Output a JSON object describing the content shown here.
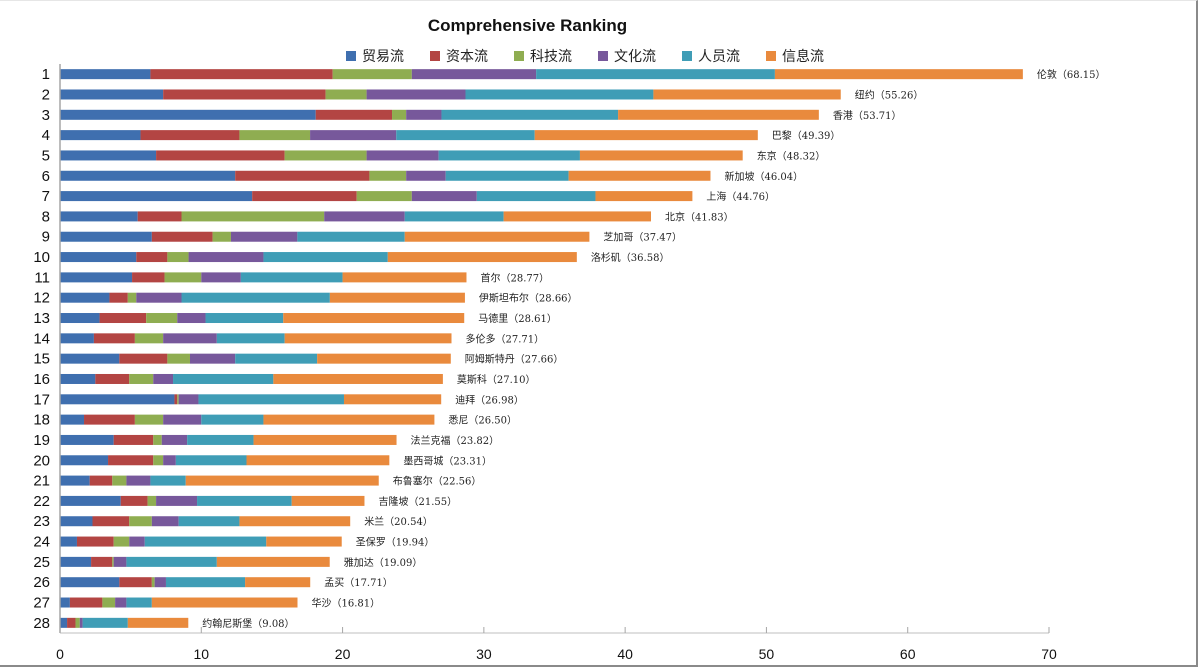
{
  "chart_data": {
    "type": "bar",
    "orientation": "horizontal",
    "stacked": true,
    "title": "Comprehensive Ranking",
    "xlabel": "",
    "ylabel": "",
    "xlim": [
      0,
      70
    ],
    "xticks": [
      0,
      10,
      20,
      30,
      40,
      50,
      60,
      70
    ],
    "grid": false,
    "legend_position": "top",
    "categories": [
      "1",
      "2",
      "3",
      "4",
      "5",
      "6",
      "7",
      "8",
      "9",
      "10",
      "11",
      "12",
      "13",
      "14",
      "15",
      "16",
      "17",
      "18",
      "19",
      "20",
      "21",
      "22",
      "23",
      "24",
      "25",
      "26",
      "27",
      "28"
    ],
    "bar_labels": [
      "伦敦（68.15）",
      "纽约（55.26）",
      "香港（53.71）",
      "巴黎（49.39）",
      "东京（48.32）",
      "新加坡（46.04）",
      "上海（44.76）",
      "北京（41.83）",
      "芝加哥（37.47）",
      "洛杉矶（36.58）",
      "首尔（28.77）",
      "伊斯坦布尔（28.66）",
      "马德里（28.61）",
      "多伦多（27.71）",
      "阿姆斯特丹（27.66）",
      "莫斯科（27.10）",
      "迪拜（26.98）",
      "悉尼（26.50）",
      "法兰克福（23.82）",
      "墨西哥城（23.31）",
      "布鲁塞尔（22.56）",
      "吉隆坡（21.55）",
      "米兰（20.54）",
      "圣保罗（19.94）",
      "雅加达（19.09）",
      "孟买（17.71）",
      "华沙（16.81）",
      "约翰尼斯堡（9.08）"
    ],
    "totals": [
      68.15,
      55.26,
      53.71,
      49.39,
      48.32,
      46.04,
      44.76,
      41.83,
      37.47,
      36.58,
      28.77,
      28.66,
      28.61,
      27.71,
      27.66,
      27.1,
      26.98,
      26.5,
      23.82,
      23.31,
      22.56,
      21.55,
      20.54,
      19.94,
      19.09,
      17.71,
      16.81,
      9.08
    ],
    "series": [
      {
        "name": "贸易流",
        "color": "#3f6faf",
        "values": [
          6.4,
          7.3,
          18.1,
          5.7,
          6.8,
          12.4,
          13.6,
          5.5,
          6.5,
          5.4,
          5.1,
          3.5,
          2.8,
          2.4,
          4.2,
          2.5,
          8.1,
          1.7,
          3.8,
          3.4,
          2.1,
          4.3,
          2.3,
          1.2,
          2.2,
          4.2,
          0.7,
          0.5
        ]
      },
      {
        "name": "资本流",
        "color": "#b34543",
        "values": [
          12.9,
          11.5,
          5.4,
          7.0,
          9.1,
          9.5,
          7.4,
          3.1,
          4.3,
          2.2,
          2.3,
          1.3,
          3.3,
          2.9,
          3.4,
          2.4,
          0.2,
          3.6,
          2.8,
          3.2,
          1.6,
          1.9,
          2.6,
          2.6,
          1.5,
          2.3,
          2.3,
          0.6
        ]
      },
      {
        "name": "科技流",
        "color": "#8fad51",
        "values": [
          5.6,
          2.9,
          1.0,
          5.0,
          5.8,
          2.6,
          3.9,
          10.1,
          1.3,
          1.5,
          2.6,
          0.6,
          2.2,
          2.0,
          1.6,
          1.7,
          0.1,
          2.0,
          0.6,
          0.7,
          1.0,
          0.6,
          1.6,
          1.1,
          0.1,
          0.2,
          0.9,
          0.3
        ]
      },
      {
        "name": "文化流",
        "color": "#77589b",
        "values": [
          8.8,
          7.0,
          2.5,
          6.1,
          5.1,
          2.8,
          4.6,
          5.7,
          4.7,
          5.3,
          2.8,
          3.2,
          2.0,
          3.8,
          3.2,
          1.4,
          1.4,
          2.7,
          1.8,
          0.9,
          1.7,
          2.9,
          1.9,
          1.1,
          0.9,
          0.8,
          0.8,
          0.2
        ]
      },
      {
        "name": "人员流",
        "color": "#3f9db6",
        "values": [
          16.9,
          13.3,
          12.5,
          9.8,
          10.0,
          8.7,
          8.4,
          7.0,
          7.6,
          8.8,
          7.2,
          10.5,
          5.5,
          4.8,
          5.8,
          7.1,
          10.3,
          4.4,
          4.7,
          5.0,
          2.5,
          6.7,
          4.3,
          8.6,
          6.4,
          5.6,
          1.8,
          3.2
        ]
      },
      {
        "name": "信息流",
        "color": "#e98a3d",
        "values": [
          17.55,
          13.26,
          14.21,
          15.79,
          11.52,
          10.04,
          6.86,
          10.43,
          13.07,
          13.38,
          8.77,
          9.56,
          12.81,
          11.81,
          9.46,
          12.0,
          6.88,
          12.1,
          10.12,
          10.11,
          13.66,
          5.15,
          7.84,
          5.34,
          7.99,
          4.61,
          10.31,
          4.28
        ]
      }
    ]
  }
}
